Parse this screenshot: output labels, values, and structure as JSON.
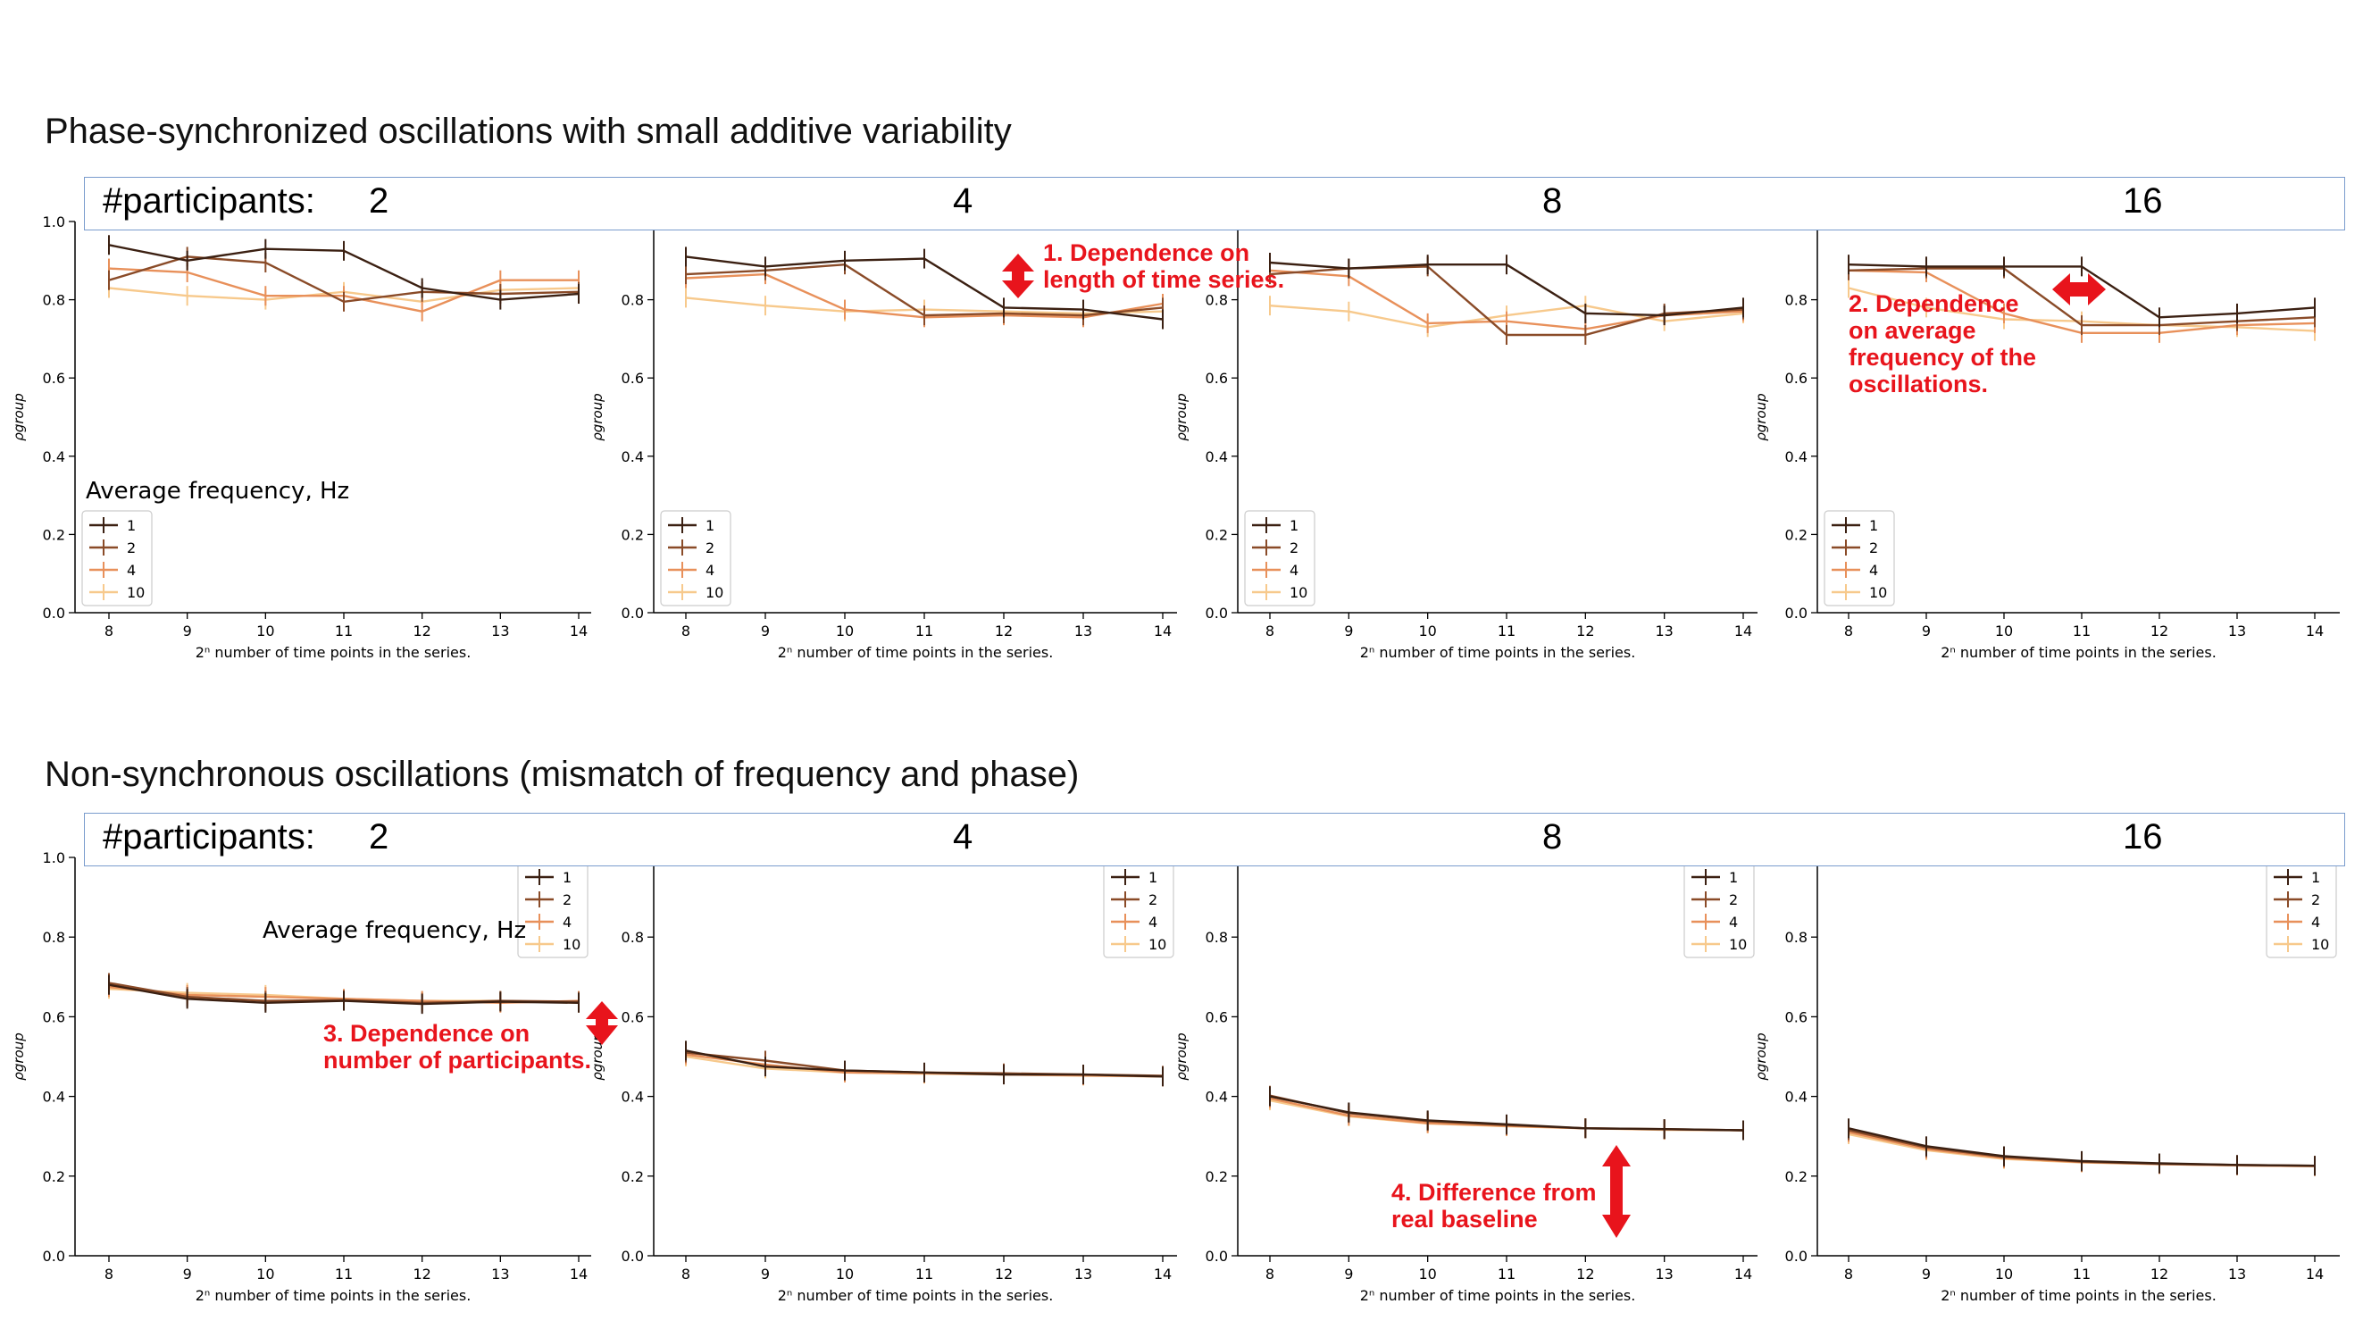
{
  "sections": [
    {
      "title": "Phase-synchronized oscillations with small additive variability",
      "participants_label": "#participants:",
      "participants": [
        "2",
        "4",
        "8",
        "16"
      ]
    },
    {
      "title": "Non-synchronous oscillations (mismatch of frequency and phase)",
      "participants_label": "#participants:",
      "participants": [
        "2",
        "4",
        "8",
        "16"
      ]
    }
  ],
  "annotations": [
    {
      "text": "1. Dependence on\nlength of time series."
    },
    {
      "text": "2. Dependence\non average\nfrequency of the\noscillations."
    },
    {
      "text": "3. Dependence on\nnumber of participants."
    },
    {
      "text": "4. Difference from\nreal baseline"
    }
  ],
  "colors": {
    "f1": "#3b2012",
    "f2": "#8a4b28",
    "f4": "#e8905a",
    "f10": "#f7c98c",
    "annotation": "#e8141c",
    "box": "#7a9ccd"
  },
  "chart_data": [
    {
      "type": "line",
      "participants": "2",
      "x": [
        8,
        9,
        10,
        11,
        12,
        13,
        14
      ],
      "xticks": [
        "8",
        "9",
        "10",
        "11",
        "12",
        "13",
        "14"
      ],
      "xlabel": "2ⁿ number of time points in the series.",
      "ylabel": "ρgroup",
      "ylim": [
        0,
        1.0
      ],
      "yticks": [
        "0.0",
        "0.2",
        "0.4",
        "0.6",
        "0.8",
        "1.0"
      ],
      "legend_title": "Average frequency, Hz",
      "legend_position": "lower-left",
      "series": [
        {
          "name": "1",
          "values": [
            0.94,
            0.9,
            0.93,
            0.925,
            0.83,
            0.8,
            0.815
          ]
        },
        {
          "name": "2",
          "values": [
            0.85,
            0.91,
            0.895,
            0.795,
            0.82,
            0.815,
            0.82
          ]
        },
        {
          "name": "4",
          "values": [
            0.88,
            0.87,
            0.81,
            0.81,
            0.77,
            0.85,
            0.85
          ]
        },
        {
          "name": "10",
          "values": [
            0.83,
            0.81,
            0.8,
            0.82,
            0.795,
            0.825,
            0.83
          ]
        }
      ]
    },
    {
      "type": "line",
      "participants": "4",
      "x": [
        8,
        9,
        10,
        11,
        12,
        13,
        14
      ],
      "xticks": [
        "8",
        "9",
        "10",
        "11",
        "12",
        "13",
        "14"
      ],
      "xlabel": "2ⁿ number of time points in the series.",
      "ylabel": "ρgroup",
      "ylim": [
        0,
        1.0
      ],
      "yticks": [
        "0.0",
        "0.2",
        "0.4",
        "0.6",
        "0.8"
      ],
      "legend_position": "lower-left",
      "series": [
        {
          "name": "1",
          "values": [
            0.91,
            0.885,
            0.9,
            0.905,
            0.78,
            0.775,
            0.75
          ]
        },
        {
          "name": "2",
          "values": [
            0.865,
            0.875,
            0.89,
            0.76,
            0.765,
            0.76,
            0.78
          ]
        },
        {
          "name": "4",
          "values": [
            0.855,
            0.865,
            0.775,
            0.755,
            0.76,
            0.755,
            0.79
          ]
        },
        {
          "name": "10",
          "values": [
            0.805,
            0.785,
            0.77,
            0.775,
            0.77,
            0.765,
            0.77
          ]
        }
      ]
    },
    {
      "type": "line",
      "participants": "8",
      "x": [
        8,
        9,
        10,
        11,
        12,
        13,
        14
      ],
      "xticks": [
        "8",
        "9",
        "10",
        "11",
        "12",
        "13",
        "14"
      ],
      "xlabel": "2ⁿ number of time points in the series.",
      "ylabel": "ρgroup",
      "ylim": [
        0,
        1.0
      ],
      "yticks": [
        "0.0",
        "0.2",
        "0.4",
        "0.6",
        "0.8"
      ],
      "legend_position": "lower-left",
      "series": [
        {
          "name": "1",
          "values": [
            0.895,
            0.88,
            0.89,
            0.89,
            0.765,
            0.76,
            0.78
          ]
        },
        {
          "name": "2",
          "values": [
            0.865,
            0.88,
            0.885,
            0.71,
            0.71,
            0.765,
            0.775
          ]
        },
        {
          "name": "4",
          "values": [
            0.875,
            0.86,
            0.74,
            0.745,
            0.725,
            0.76,
            0.77
          ]
        },
        {
          "name": "10",
          "values": [
            0.785,
            0.77,
            0.73,
            0.76,
            0.785,
            0.745,
            0.765
          ]
        }
      ]
    },
    {
      "type": "line",
      "participants": "16",
      "x": [
        8,
        9,
        10,
        11,
        12,
        13,
        14
      ],
      "xticks": [
        "8",
        "9",
        "10",
        "11",
        "12",
        "13",
        "14"
      ],
      "xlabel": "2ⁿ number of time points in the series.",
      "ylabel": "ρgroup",
      "ylim": [
        0,
        1.0
      ],
      "yticks": [
        "0.0",
        "0.2",
        "0.4",
        "0.6",
        "0.8"
      ],
      "legend_position": "lower-left",
      "series": [
        {
          "name": "1",
          "values": [
            0.89,
            0.885,
            0.885,
            0.885,
            0.755,
            0.765,
            0.78
          ]
        },
        {
          "name": "2",
          "values": [
            0.875,
            0.88,
            0.88,
            0.735,
            0.735,
            0.745,
            0.755
          ]
        },
        {
          "name": "4",
          "values": [
            0.875,
            0.87,
            0.765,
            0.715,
            0.715,
            0.735,
            0.74
          ]
        },
        {
          "name": "10",
          "values": [
            0.83,
            0.78,
            0.75,
            0.745,
            0.735,
            0.73,
            0.72
          ]
        }
      ]
    },
    {
      "type": "line",
      "participants": "2",
      "x": [
        8,
        9,
        10,
        11,
        12,
        13,
        14
      ],
      "xticks": [
        "8",
        "9",
        "10",
        "11",
        "12",
        "13",
        "14"
      ],
      "xlabel": "2ⁿ number of time points in the series.",
      "ylabel": "ρgroup",
      "ylim": [
        0,
        1.0
      ],
      "yticks": [
        "0.0",
        "0.2",
        "0.4",
        "0.6",
        "0.8",
        "1.0"
      ],
      "legend_title": "Average frequency, Hz",
      "legend_position": "top-right",
      "series": [
        {
          "name": "1",
          "values": [
            0.68,
            0.645,
            0.635,
            0.64,
            0.632,
            0.638,
            0.635
          ]
        },
        {
          "name": "2",
          "values": [
            0.685,
            0.65,
            0.64,
            0.642,
            0.635,
            0.64,
            0.638
          ]
        },
        {
          "name": "4",
          "values": [
            0.675,
            0.655,
            0.65,
            0.645,
            0.64,
            0.635,
            0.64
          ]
        },
        {
          "name": "10",
          "values": [
            0.67,
            0.66,
            0.655,
            0.645,
            0.64,
            0.64,
            0.635
          ]
        }
      ]
    },
    {
      "type": "line",
      "participants": "4",
      "x": [
        8,
        9,
        10,
        11,
        12,
        13,
        14
      ],
      "xticks": [
        "8",
        "9",
        "10",
        "11",
        "12",
        "13",
        "14"
      ],
      "xlabel": "2ⁿ number of time points in the series.",
      "ylabel": "ρgroup",
      "ylim": [
        0,
        1.0
      ],
      "yticks": [
        "0.0",
        "0.2",
        "0.4",
        "0.6",
        "0.8"
      ],
      "legend_position": "top-right",
      "series": [
        {
          "name": "1",
          "values": [
            0.515,
            0.475,
            0.465,
            0.46,
            0.455,
            0.455,
            0.45
          ]
        },
        {
          "name": "2",
          "values": [
            0.51,
            0.49,
            0.465,
            0.46,
            0.458,
            0.455,
            0.452
          ]
        },
        {
          "name": "4",
          "values": [
            0.505,
            0.48,
            0.46,
            0.458,
            0.455,
            0.453,
            0.45
          ]
        },
        {
          "name": "10",
          "values": [
            0.5,
            0.47,
            0.46,
            0.457,
            0.455,
            0.452,
            0.45
          ]
        }
      ]
    },
    {
      "type": "line",
      "participants": "8",
      "x": [
        8,
        9,
        10,
        11,
        12,
        13,
        14
      ],
      "xticks": [
        "8",
        "9",
        "10",
        "11",
        "12",
        "13",
        "14"
      ],
      "xlabel": "2ⁿ number of time points in the series.",
      "ylabel": "ρgroup",
      "ylim": [
        0,
        1.0
      ],
      "yticks": [
        "0.0",
        "0.2",
        "0.4",
        "0.6",
        "0.8"
      ],
      "legend_position": "top-right",
      "series": [
        {
          "name": "1",
          "values": [
            0.4,
            0.36,
            0.34,
            0.33,
            0.32,
            0.318,
            0.315
          ]
        },
        {
          "name": "2",
          "values": [
            0.402,
            0.358,
            0.338,
            0.328,
            0.32,
            0.318,
            0.315
          ]
        },
        {
          "name": "4",
          "values": [
            0.395,
            0.352,
            0.333,
            0.326,
            0.32,
            0.317,
            0.315
          ]
        },
        {
          "name": "10",
          "values": [
            0.39,
            0.35,
            0.332,
            0.325,
            0.32,
            0.316,
            0.315
          ]
        }
      ]
    },
    {
      "type": "line",
      "participants": "16",
      "x": [
        8,
        9,
        10,
        11,
        12,
        13,
        14
      ],
      "xticks": [
        "8",
        "9",
        "10",
        "11",
        "12",
        "13",
        "14"
      ],
      "xlabel": "2ⁿ number of time points in the series.",
      "ylabel": "ρgroup",
      "ylim": [
        0,
        1.0
      ],
      "yticks": [
        "0.0",
        "0.2",
        "0.4",
        "0.6",
        "0.8"
      ],
      "legend_position": "top-right",
      "series": [
        {
          "name": "1",
          "values": [
            0.32,
            0.275,
            0.25,
            0.238,
            0.232,
            0.228,
            0.226
          ]
        },
        {
          "name": "2",
          "values": [
            0.315,
            0.272,
            0.248,
            0.236,
            0.231,
            0.228,
            0.226
          ]
        },
        {
          "name": "4",
          "values": [
            0.31,
            0.268,
            0.245,
            0.235,
            0.23,
            0.227,
            0.225
          ]
        },
        {
          "name": "10",
          "values": [
            0.305,
            0.265,
            0.243,
            0.234,
            0.23,
            0.227,
            0.225
          ]
        }
      ]
    }
  ]
}
